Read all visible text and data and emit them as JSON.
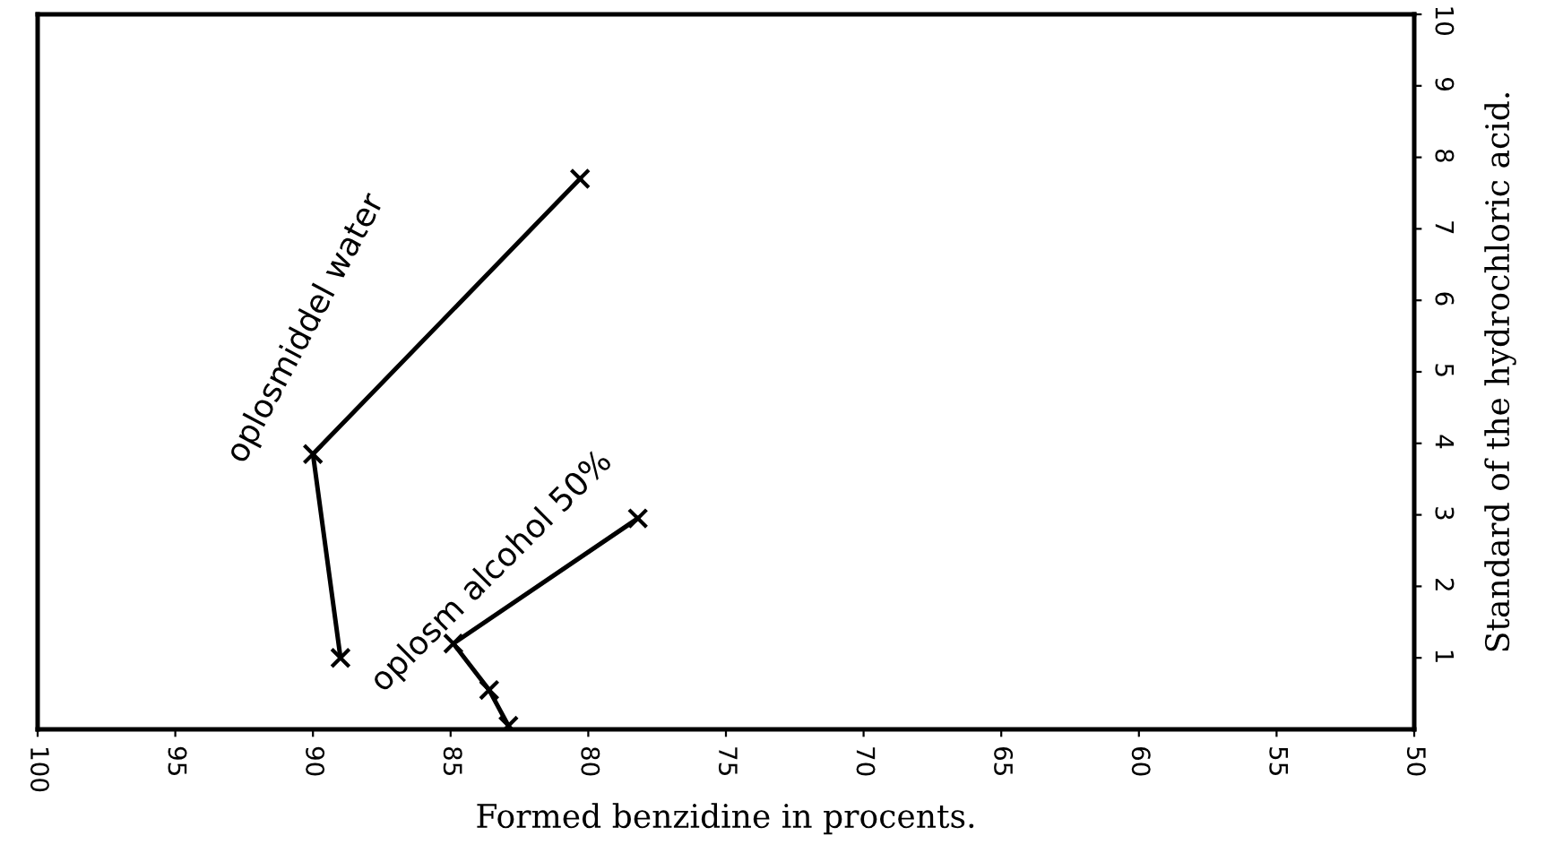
{
  "chart_data": {
    "type": "line",
    "xlabel": "Formed benzidine in procents.",
    "ylabel": "Standard of the hydrochloric acid.",
    "xlim": [
      100,
      50
    ],
    "xticks": [
      100,
      95,
      90,
      85,
      80,
      75,
      70,
      65,
      60,
      55,
      50
    ],
    "ylim": [
      0,
      10
    ],
    "yticks": [
      1,
      2,
      3,
      4,
      5,
      6,
      7,
      8,
      9,
      10
    ],
    "series": [
      {
        "color": "#000000",
        "x": [
          80.3,
          90,
          89
        ],
        "values": [
          7.7,
          3.85,
          1.0
        ]
      },
      {
        "color": "#000000",
        "x": [
          78.2,
          84.9,
          83.6,
          82.9
        ],
        "values": [
          2.95,
          1.2,
          0.55,
          0.05
        ]
      }
    ],
    "annotations": [
      "oplosmiddel water",
      "oplosm alcohol 50%"
    ],
    "marker": "cross",
    "line_style": "solid",
    "grid": false,
    "legend": false
  }
}
